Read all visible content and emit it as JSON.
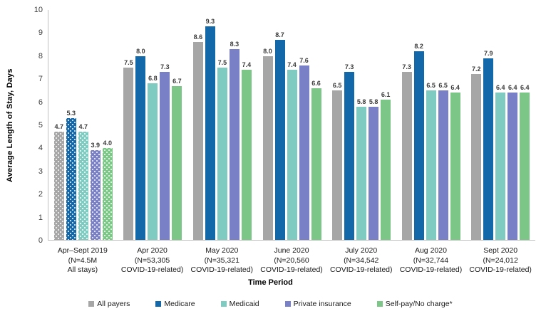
{
  "figure": {
    "background": "#ffffff",
    "axis_color": "#BFBFBF",
    "tick_label_color": "#3F3F3F",
    "value_label_color": "#3A3A3A"
  },
  "chart_data": {
    "type": "bar",
    "title": "",
    "xlabel": "Time Period",
    "ylabel": "Average Length of Stay, Days",
    "ylim": [
      0,
      10
    ],
    "ytick_step": 1,
    "grid": false,
    "legend_position": "bottom",
    "value_labels": "one-decimal, bold, above each bar",
    "first_group_pattern": "white-dots",
    "categories": [
      [
        "Apr–Sept 2019",
        "(N=4.5M",
        "All stays)"
      ],
      [
        "Apr 2020",
        "(N=53,305",
        "COVID-19-related)"
      ],
      [
        "May 2020",
        "(N=35,321",
        "COVID-19-related)"
      ],
      [
        "June 2020",
        "(N=20,560",
        "COVID-19-related)"
      ],
      [
        "July 2020",
        "(N=34,542",
        "COVID-19-related)"
      ],
      [
        "Aug 2020",
        "(N=32,744",
        "COVID-19-related)"
      ],
      [
        "Sept 2020",
        "(N=24,012",
        "COVID-19-related)"
      ]
    ],
    "series": [
      {
        "name": "All payers",
        "color": "#A6A6A6",
        "values": [
          4.7,
          7.5,
          8.6,
          8.0,
          6.5,
          7.3,
          7.2
        ]
      },
      {
        "name": "Medicare",
        "color": "#1268A9",
        "values": [
          5.3,
          8.0,
          9.3,
          8.7,
          7.3,
          8.2,
          7.9
        ]
      },
      {
        "name": "Medicaid",
        "color": "#7FCBC2",
        "values": [
          4.7,
          6.8,
          7.5,
          7.4,
          5.8,
          6.5,
          6.4
        ]
      },
      {
        "name": "Private insurance",
        "color": "#7A80C6",
        "values": [
          3.9,
          7.3,
          8.3,
          7.6,
          5.8,
          6.5,
          6.4
        ]
      },
      {
        "name": "Self-pay/No charge*",
        "color": "#7CC687",
        "values": [
          4.0,
          6.7,
          7.4,
          6.6,
          6.1,
          6.4,
          6.4
        ]
      }
    ]
  }
}
